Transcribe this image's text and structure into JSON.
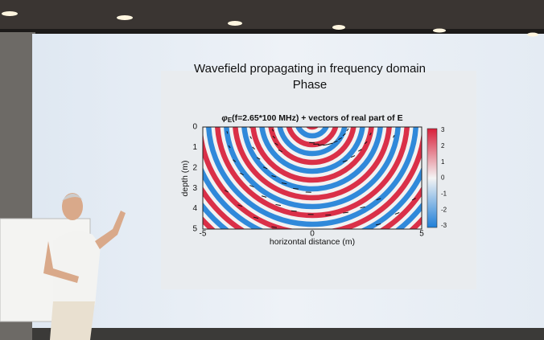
{
  "slide": {
    "title": "Wavefield propagating in frequency domain",
    "subtitle": "Phase"
  },
  "plot": {
    "title_symbol": "φ",
    "title_subscript": "E",
    "title_rest": "(f=2.65*100 MHz) + vectors of real part of E",
    "y_label": "depth (m)",
    "x_label": "horizontal distance (m)",
    "y_ticks": [
      "0",
      "1",
      "2",
      "3",
      "4",
      "5"
    ],
    "x_ticks": [
      "-5",
      "0",
      "5"
    ]
  },
  "colorbar": {
    "ticks": [
      "3",
      "2",
      "1",
      "0",
      "-1",
      "-2",
      "-3"
    ]
  }
}
